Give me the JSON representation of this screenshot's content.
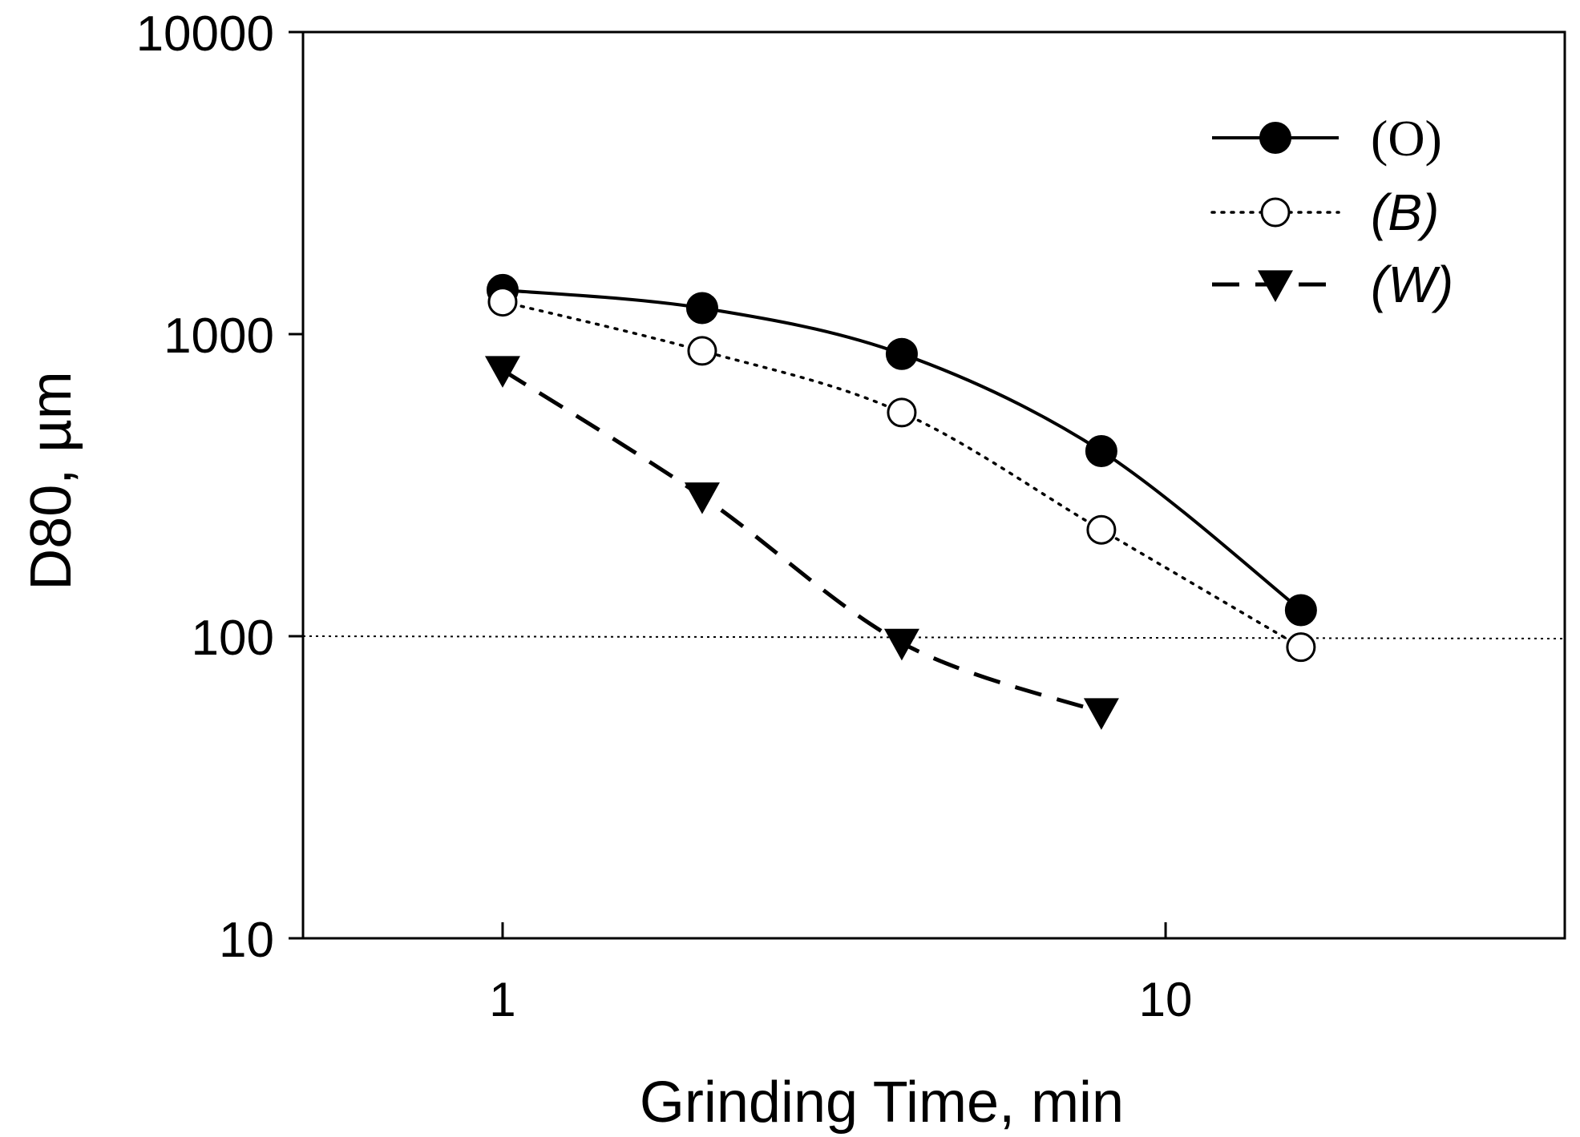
{
  "chart_data": {
    "type": "line",
    "xscale": "log",
    "yscale": "log",
    "xlabel": "Grinding Time, min",
    "ylabel": "D80, µm",
    "xlim": [
      0.5,
      40
    ],
    "ylim": [
      10,
      10000
    ],
    "xticks": [
      1,
      10
    ],
    "xtick_labels": [
      "1",
      "10"
    ],
    "yticks": [
      10,
      100,
      1000,
      10000
    ],
    "ytick_labels": [
      "10",
      "100",
      "1000",
      "10000"
    ],
    "reference_line": {
      "y": 100,
      "style": "dotted"
    },
    "legend_position": "top-right",
    "series": [
      {
        "name": "(O)",
        "marker": "filled-circle",
        "line": "solid",
        "x": [
          1,
          2,
          4,
          8,
          16
        ],
        "y": [
          1400,
          1220,
          860,
          410,
          122
        ]
      },
      {
        "name": "(B)",
        "marker": "open-circle",
        "line": "dotted",
        "x": [
          1,
          2,
          4,
          8,
          16
        ],
        "y": [
          1280,
          880,
          550,
          225,
          92
        ]
      },
      {
        "name": "(W)",
        "marker": "filled-triangle-down",
        "line": "dashed",
        "x": [
          1,
          2,
          4,
          8
        ],
        "y": [
          760,
          290,
          95,
          56
        ]
      }
    ]
  }
}
